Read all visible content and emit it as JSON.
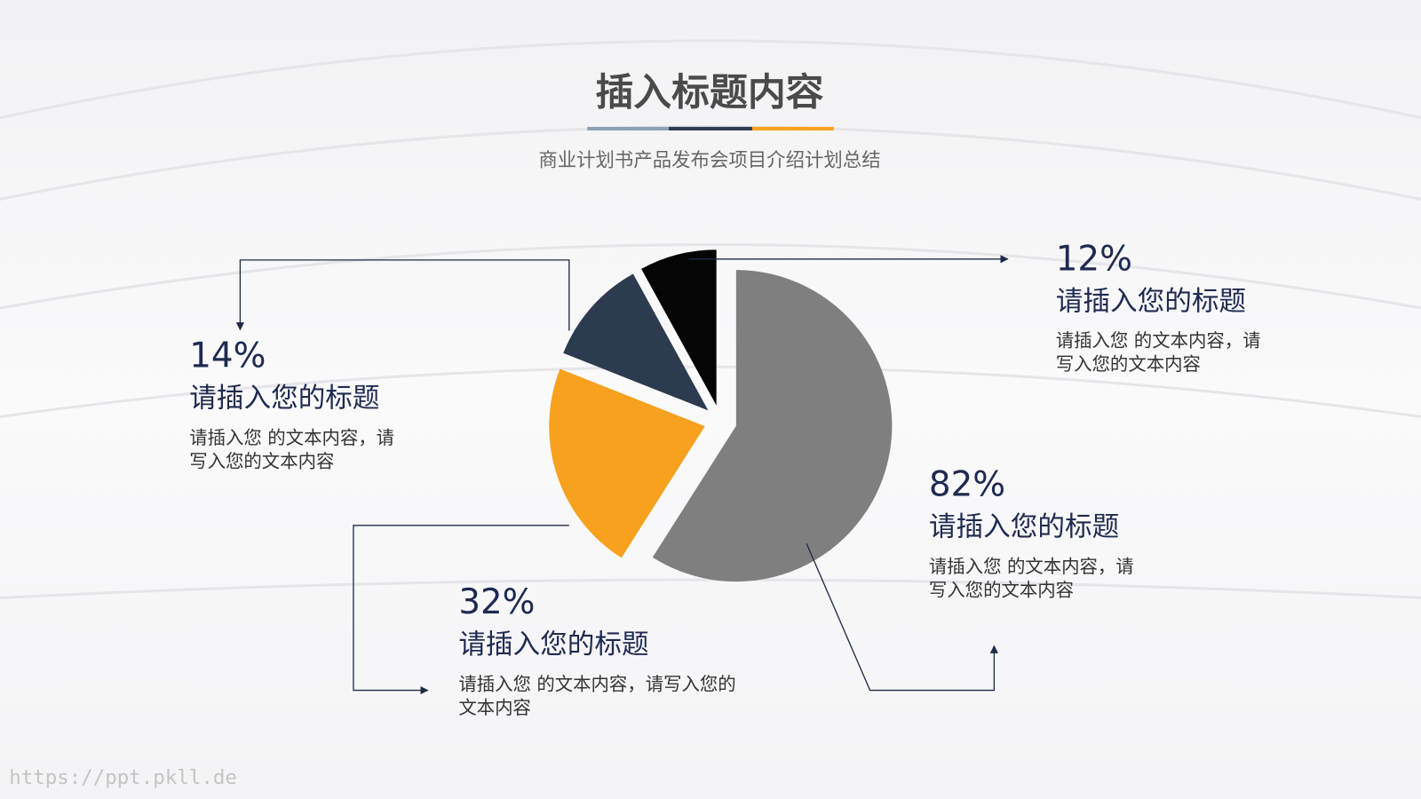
{
  "chart_data": {
    "type": "pie",
    "title": "插入标题内容",
    "subtitle": "商业计划书产品发布会项目介绍计划总结",
    "values": [
      59,
      22,
      11,
      8
    ],
    "colors": [
      "#7f7f7f",
      "#f7a11e",
      "#2c3b4f",
      "#050505"
    ],
    "annotations": [
      {
        "percent": "12%",
        "title": "请插入您的标题",
        "lines": [
          "请插入您 的文本内容，请",
          "写入您的文本内容"
        ]
      },
      {
        "percent": "14%",
        "title": "请插入您的标题",
        "lines": [
          "请插入您 的文本内容，请",
          "写入您的文本内容"
        ]
      },
      {
        "percent": "82%",
        "title": "请插入您的标题",
        "lines": [
          "请插入您 的文本内容，请",
          "写入您的文本内容"
        ]
      },
      {
        "percent": "32%",
        "title": "请插入您的标题",
        "lines": [
          "请插入您 的文本内容，请写入您的",
          "文本内容"
        ]
      }
    ],
    "watermark": "https://ppt.pkll.de"
  }
}
